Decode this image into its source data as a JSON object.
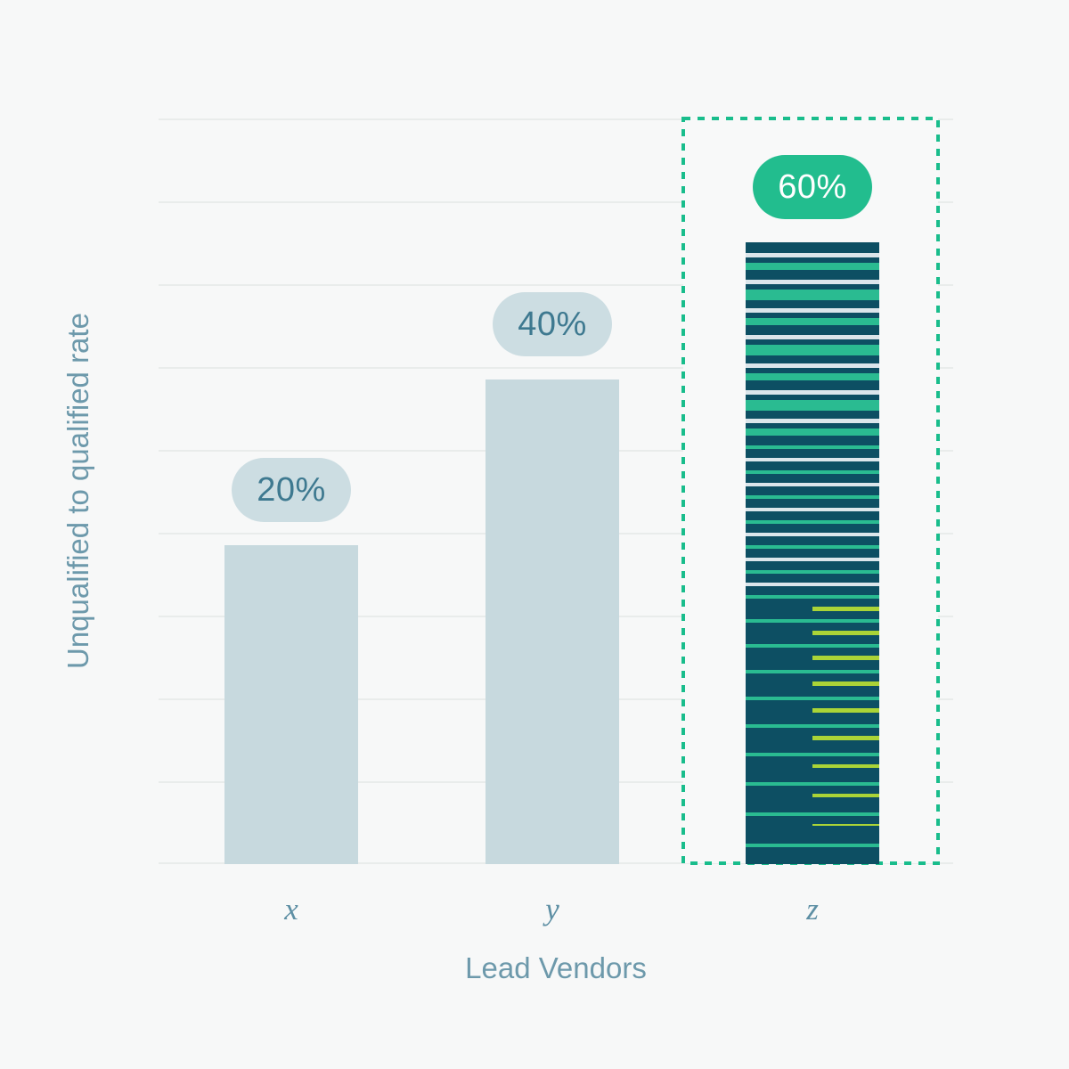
{
  "page": {
    "background": "#f7f8f8"
  },
  "chart_data": {
    "type": "bar",
    "title": "",
    "xlabel": "Lead Vendors",
    "ylabel": "Unqualified to qualified rate",
    "categories": [
      "x",
      "y",
      "z"
    ],
    "values": [
      20,
      40,
      60
    ],
    "value_labels": [
      "20%",
      "40%",
      "60%"
    ],
    "highlighted_category": "z",
    "grid": true,
    "gridline_count": 10,
    "legend_position": "none",
    "ylim": [
      0,
      100
    ]
  },
  "colors": {
    "background": "#f7f8f8",
    "gridline": "#e9eceb",
    "bar_default": "#c7d9de",
    "badge_default_bg": "#ccdde2",
    "badge_default_text": "#3e7990",
    "badge_highlight_bg": "#22bd8e",
    "badge_highlight_text": "#ffffff",
    "highlight_border": "#19bd8c",
    "highlight_fill": "#f8f9f9",
    "bar_highlight_base": "#0d4f63",
    "stripe_green": "#2abb91",
    "stripe_light": "#dbe6eb",
    "stripe_yellow": "#aad437",
    "category_text": "#5d8fa4",
    "axis_title_text": "#6d99ab"
  }
}
